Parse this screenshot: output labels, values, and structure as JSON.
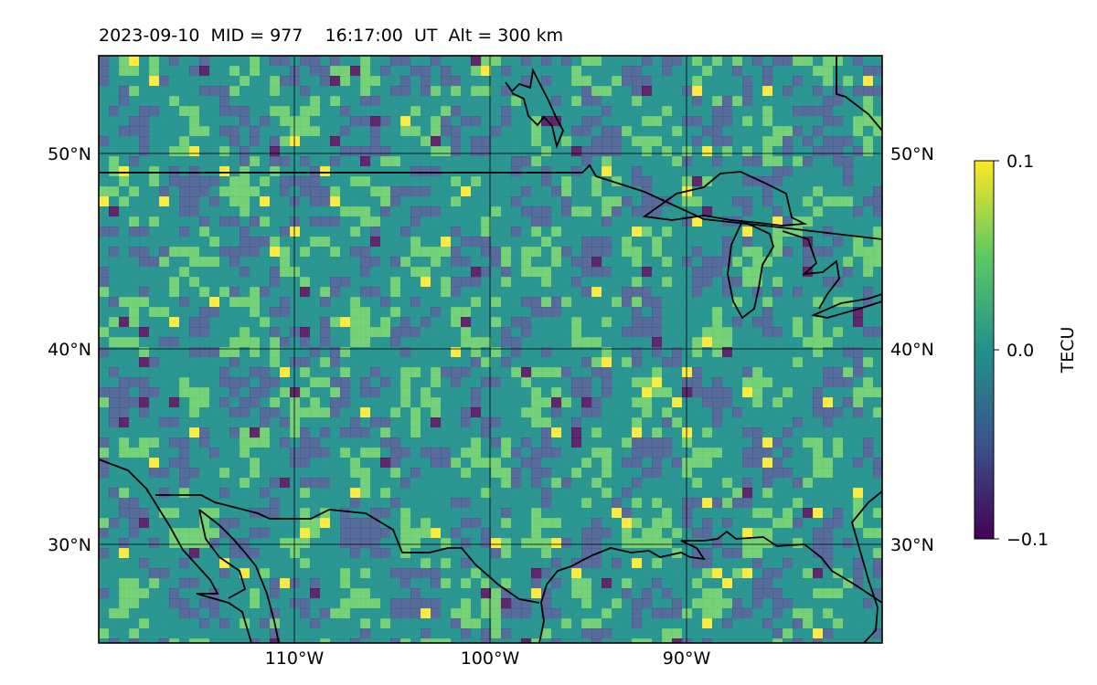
{
  "title": "2023-09-10  MID = 977    16:17:00  UT  Alt = 300 km",
  "map": {
    "region": "central North America",
    "lon_range": [
      -120,
      -80
    ],
    "lat_range": [
      25,
      55
    ],
    "longitude_labels": [
      "110°W",
      "100°W",
      "90°W"
    ],
    "latitude_labels": [
      "50°N",
      "40°N",
      "30°N"
    ],
    "gridlines": true
  },
  "colorbar": {
    "label": "TECU",
    "colormap": "viridis",
    "min": -0.1,
    "max": 0.1,
    "ticks": [
      {
        "label": "0.1",
        "value": 0.1
      },
      {
        "label": "0.0",
        "value": 0.0
      },
      {
        "label": "−0.1",
        "value": -0.1
      }
    ],
    "colors": [
      "#440154",
      "#3b528b",
      "#21918c",
      "#5ec962",
      "#fde725"
    ]
  },
  "colors": {
    "coastline": "#000000",
    "grid": "#000000",
    "background": "#ffffff"
  }
}
